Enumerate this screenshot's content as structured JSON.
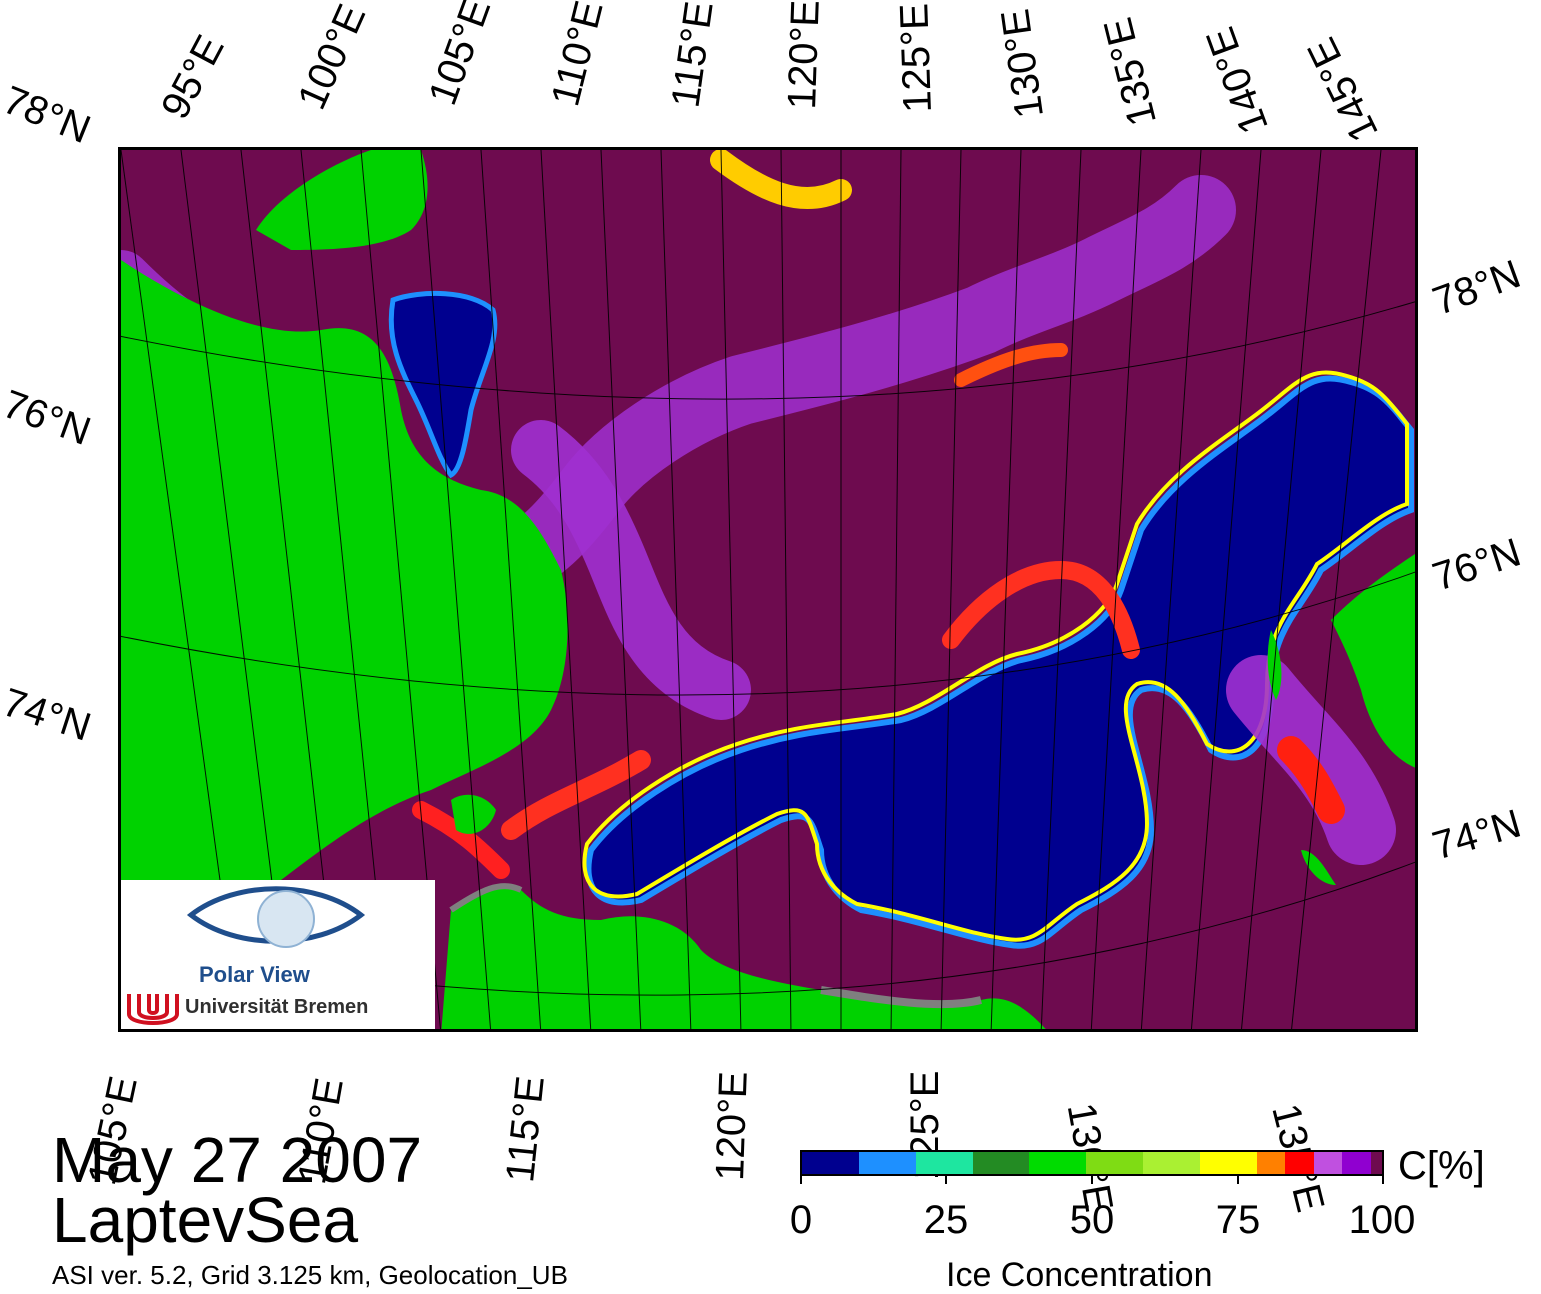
{
  "map": {
    "top_lon_labels": [
      "95°E",
      "100°E",
      "105°E",
      "110°E",
      "115°E",
      "120°E",
      "125°E",
      "130°E",
      "135°E",
      "140°E",
      "145°E"
    ],
    "bottom_lon_labels": [
      "105°E",
      "110°E",
      "115°E",
      "120°E",
      "125°E",
      "130°E",
      "135°E"
    ],
    "left_lat_labels": [
      "78°N",
      "76°N",
      "74°N"
    ],
    "right_lat_labels": [
      "78°N",
      "76°N",
      "74°N"
    ],
    "colors": {
      "land": "#00d200",
      "land_ice": "#7f7f7f",
      "ice_full": "#6e0b4f",
      "open_water": "#00008f"
    }
  },
  "date": "May 27 2007",
  "region": "LaptevSea",
  "info": "ASI ver. 5.2,  Grid 3.125 km, Geolocation_UB",
  "legend": {
    "unit": "C[%]",
    "title": "Ice Concentration",
    "ticks": [
      "0",
      "25",
      "50",
      "75",
      "100"
    ],
    "color_steps": [
      "#00008f",
      "#1e90ff",
      "#1ee6a0",
      "#238b23",
      "#00dc00",
      "#7fdc14",
      "#aaf032",
      "#ffff00",
      "#ff8000",
      "#ff0000",
      "#c050e0",
      "#9000d0",
      "#6e0b4f"
    ]
  },
  "logo": {
    "title": "Polar View",
    "subtitle": "Universität Bremen"
  }
}
